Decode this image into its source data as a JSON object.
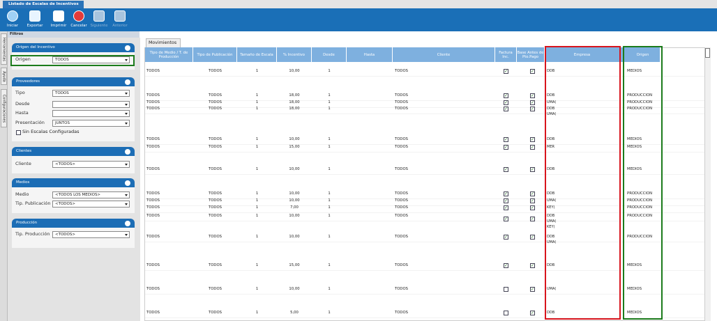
{
  "window": {
    "title": "Listado de Escalas de Incentivos"
  },
  "toolbar": [
    "Iniciar",
    "Exportar",
    "Imprimir",
    "Cancelar",
    "Siguiente",
    "Anterior"
  ],
  "side_tabs": [
    "Herramientas",
    "Ayuda",
    "Configuraciones"
  ],
  "filters": {
    "title": "Filtros",
    "sections": [
      {
        "title": "Origen del Incentivo",
        "fields": [
          {
            "label": "Origen",
            "value": "TODOS"
          }
        ]
      },
      {
        "title": "Proveedores",
        "fields": [
          {
            "label": "Tipo",
            "value": "TODOS"
          },
          {
            "label": "Desde"
          },
          {
            "label": "Hasta"
          },
          {
            "label": "Presentación",
            "value": "JUNTOS"
          }
        ],
        "checkbox": "Sin Escalas Configuradas"
      },
      {
        "title": "Clientes",
        "fields": [
          {
            "label": "Cliente",
            "value": "<TODOS>"
          }
        ]
      },
      {
        "title": "Medios",
        "fields": [
          {
            "label": "Medio",
            "value": "<TODOS LOS MEDIOS>"
          },
          {
            "label": "Tip. Publicación",
            "value": "<TODOS>"
          }
        ]
      },
      {
        "title": "Producción",
        "fields": [
          {
            "label": "Tip. Producción",
            "value": "<TODOS>"
          }
        ]
      }
    ]
  },
  "movimientos": {
    "tab": "Movimientos",
    "columns": [
      "Tipo de Medio / T. de Producción",
      "Tipo de Publicación",
      "Tamaño de Escala",
      "% Incentivo",
      "Desde",
      "Hasta",
      "Cliente",
      "Factura Inc.",
      "Base Antes de Pto.Pago",
      "Empresa",
      "Origen"
    ],
    "rows": [
      {
        "tipo": "TODOS",
        "publicacion": "TODOS",
        "tamano": "1",
        "incentivo": "10,00",
        "desde": "1",
        "cliente": "TODOS",
        "factura": true,
        "base": true,
        "empresa": [
          "DDB"
        ],
        "origen": "MEDIOS"
      },
      {
        "tipo": "TODOS",
        "publicacion": "TODOS",
        "tamano": "1",
        "incentivo": "18,00",
        "desde": "1",
        "cliente": "TODOS",
        "factura": true,
        "base": true,
        "empresa": [
          "DDB"
        ],
        "origen": "PRODUCCION"
      },
      {
        "tipo": "TODOS",
        "publicacion": "TODOS",
        "tamano": "1",
        "incentivo": "18,00",
        "desde": "1",
        "cliente": "TODOS",
        "factura": true,
        "base": true,
        "empresa": [
          "UMA("
        ],
        "origen": "PRODUCCION"
      },
      {
        "tipo": "TODOS",
        "publicacion": "TODOS",
        "tamano": "1",
        "incentivo": "18,00",
        "desde": "1",
        "cliente": "TODOS",
        "factura": true,
        "base": true,
        "empresa": [
          "DDB",
          "UMA("
        ],
        "origen": "PRODUCCION"
      },
      {
        "tipo": "TODOS",
        "publicacion": "TODOS",
        "tamano": "1",
        "incentivo": "10,00",
        "desde": "1",
        "cliente": "TODOS",
        "factura": true,
        "base": true,
        "empresa": [
          "DDB"
        ],
        "origen": "MEDIOS"
      },
      {
        "tipo": "TODOS",
        "publicacion": "TODOS",
        "tamano": "1",
        "incentivo": "15,00",
        "desde": "1",
        "cliente": "TODOS",
        "factura": true,
        "base": true,
        "empresa": [
          "MER"
        ],
        "origen": "MEDIOS"
      },
      {
        "tipo": "TODOS",
        "publicacion": "TODOS",
        "tamano": "1",
        "incentivo": "10,00",
        "desde": "1",
        "cliente": "TODOS",
        "factura": true,
        "base": true,
        "empresa": [
          "DDB"
        ],
        "origen": "MEDIOS"
      },
      {
        "tipo": "TODOS",
        "publicacion": "TODOS",
        "tamano": "1",
        "incentivo": "10,00",
        "desde": "1",
        "cliente": "TODOS",
        "factura": true,
        "base": true,
        "empresa": [
          "DDB"
        ],
        "origen": "PRODUCCION"
      },
      {
        "tipo": "TODOS",
        "publicacion": "TODOS",
        "tamano": "1",
        "incentivo": "10,00",
        "desde": "1",
        "cliente": "TODOS",
        "factura": true,
        "base": true,
        "empresa": [
          "UMA("
        ],
        "origen": "PRODUCCION"
      },
      {
        "tipo": "TODOS",
        "publicacion": "TODOS",
        "tamano": "1",
        "incentivo": "7,00",
        "desde": "1",
        "cliente": "TODOS",
        "factura": true,
        "base": true,
        "empresa": [
          "KEY("
        ],
        "origen": "PRODUCCION"
      },
      {
        "tipo": "TODOS",
        "publicacion": "TODOS",
        "tamano": "1",
        "incentivo": "10,00",
        "desde": "1",
        "cliente": "TODOS",
        "factura": true,
        "base": true,
        "empresa": [
          "DDB",
          "UMA(",
          "KEY("
        ],
        "origen": "PRODUCCION"
      },
      {
        "tipo": "TODOS",
        "publicacion": "TODOS",
        "tamano": "1",
        "incentivo": "10,00",
        "desde": "1",
        "cliente": "TODOS",
        "factura": true,
        "base": true,
        "empresa": [
          "DDB",
          "UMA("
        ],
        "origen": "PRODUCCION"
      },
      {
        "tipo": "TODOS",
        "publicacion": "TODOS",
        "tamano": "1",
        "incentivo": "15,00",
        "desde": "1",
        "cliente": "TODOS",
        "factura": true,
        "base": true,
        "empresa": [
          "DDB"
        ],
        "origen": "MEDIOS"
      },
      {
        "tipo": "TODOS",
        "publicacion": "TODOS",
        "tamano": "1",
        "incentivo": "10,00",
        "desde": "1",
        "cliente": "TODOS",
        "factura": false,
        "base": true,
        "empresa": [
          "UMA("
        ],
        "origen": "MEDIOS"
      },
      {
        "tipo": "TODOS",
        "publicacion": "TODOS",
        "tamano": "1",
        "incentivo": "5,00",
        "desde": "1",
        "cliente": "TODOS",
        "factura": false,
        "base": true,
        "empresa": [
          "DDB"
        ],
        "origen": "MEDIOS"
      }
    ]
  }
}
